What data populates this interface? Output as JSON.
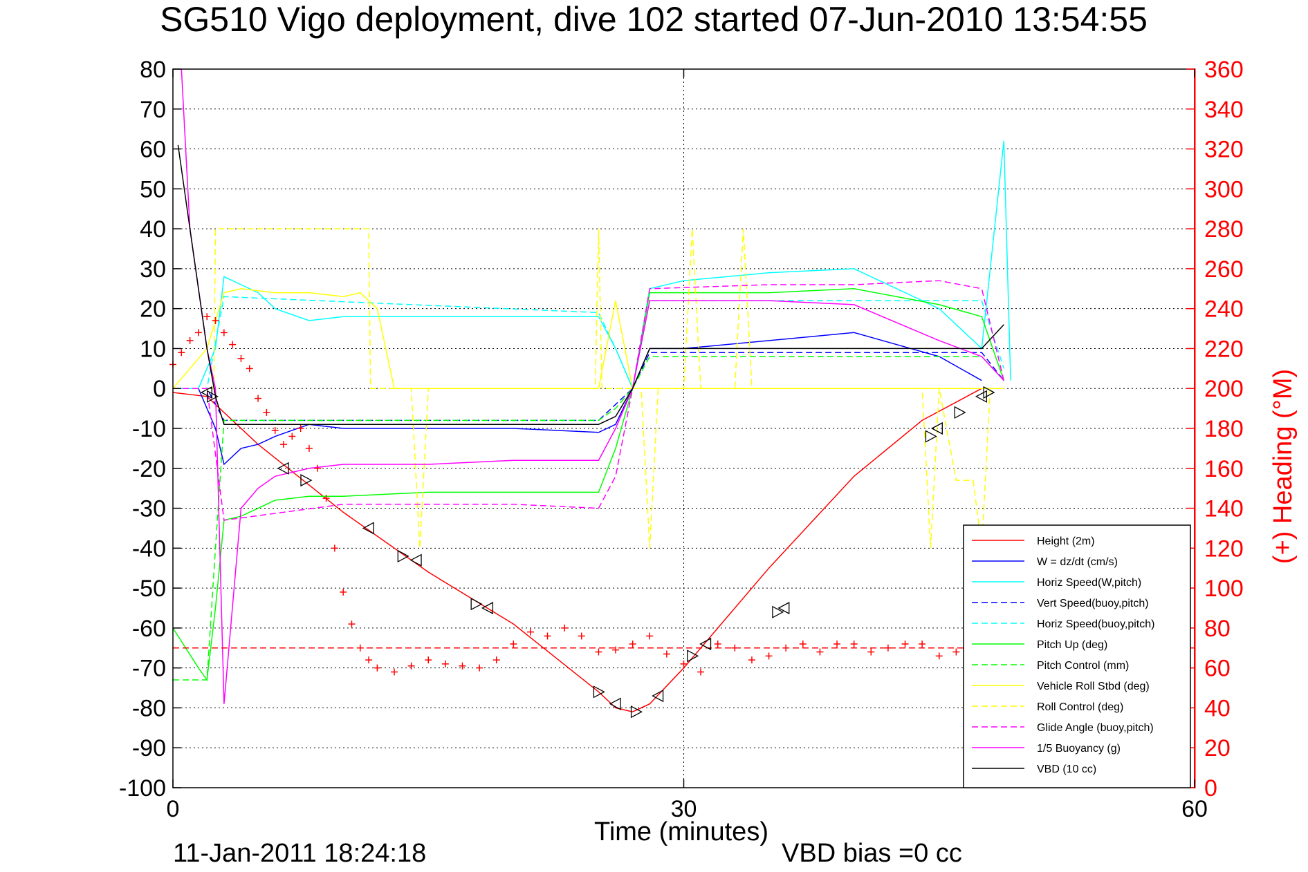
{
  "chart_data": {
    "type": "line",
    "title": "SG510 Vigo deployment, dive 102 started 07-Jun-2010 13:54:55",
    "xlabel": "Time (minutes)",
    "ylabel": "",
    "y2label": "(+) Heading (°M)",
    "xlim": [
      0,
      60
    ],
    "ylim": [
      -100,
      80
    ],
    "y2lim": [
      0,
      360
    ],
    "x_ticks": [
      "0",
      "30",
      "60"
    ],
    "y_ticks": [
      "80",
      "70",
      "60",
      "50",
      "40",
      "30",
      "20",
      "10",
      "0",
      "-10",
      "-20",
      "-30",
      "-40",
      "-50",
      "-60",
      "-70",
      "-80",
      "-90",
      "-100"
    ],
    "y2_ticks": [
      "360",
      "340",
      "320",
      "300",
      "280",
      "260",
      "240",
      "220",
      "200",
      "180",
      "160",
      "140",
      "120",
      "100",
      "80",
      "60",
      "40",
      "20",
      "0"
    ],
    "grid": true,
    "legend_position": "bottom-right",
    "footer_left": "11-Jan-2011 18:24:18",
    "footer_right": "VBD bias =0 cc",
    "series": [
      {
        "name": "Height (2m)",
        "color": "#ff0000",
        "style": "solid",
        "x": [
          0,
          2,
          5,
          10,
          15,
          20,
          25,
          26,
          27,
          28,
          30,
          35,
          40,
          44,
          47.5
        ],
        "y": [
          -1,
          -2,
          -14,
          -31,
          -46,
          -59,
          -76,
          -80,
          -81,
          -79,
          -70,
          -45,
          -22,
          -8,
          0
        ]
      },
      {
        "name": "W = dz/dt (cm/s)",
        "color": "#0000ff",
        "style": "solid",
        "x": [
          0,
          1.5,
          2.5,
          3,
          4,
          5,
          6,
          8,
          10,
          15,
          20,
          25,
          26,
          27,
          28,
          30,
          35,
          40,
          45,
          47.5
        ],
        "y": [
          0,
          0,
          -10,
          -19,
          -15,
          -14,
          -12,
          -9,
          -10,
          -10,
          -10,
          -11,
          -9,
          0,
          10,
          10,
          12,
          14,
          8,
          2
        ]
      },
      {
        "name": "Horiz Speed(W,pitch)",
        "color": "#00ffff",
        "style": "solid",
        "x": [
          0,
          1.5,
          2.5,
          3,
          4,
          5,
          6,
          8,
          10,
          15,
          20,
          25,
          26,
          27,
          28,
          30,
          35,
          40,
          45,
          47.5,
          48.8,
          49.2
        ],
        "y": [
          0,
          0,
          10,
          28,
          26,
          24,
          20,
          17,
          18,
          18,
          18,
          18,
          10,
          0,
          25,
          27,
          29,
          30,
          20,
          10,
          62,
          2
        ]
      },
      {
        "name": "Vert Speed(buoy,pitch)",
        "color": "#0000ff",
        "style": "dashed",
        "x": [
          0,
          2,
          3,
          25,
          26,
          27,
          28,
          47.5,
          48.8
        ],
        "y": [
          0,
          0,
          -8,
          -8,
          -4,
          0,
          9,
          9,
          2
        ]
      },
      {
        "name": "Horiz Speed(buoy,pitch)",
        "color": "#00ffff",
        "style": "dashed",
        "x": [
          0,
          2,
          3,
          25,
          26,
          27,
          28,
          47.5,
          48.8
        ],
        "y": [
          0,
          0,
          23,
          19,
          10,
          0,
          22,
          22,
          5
        ]
      },
      {
        "name": "Pitch Up (deg)",
        "color": "#00ff00",
        "style": "solid",
        "x": [
          0,
          1.5,
          2,
          2.5,
          3,
          4,
          5,
          6,
          8,
          10,
          15,
          20,
          25,
          26,
          27,
          28,
          30,
          35,
          40,
          45,
          47.5,
          48.8
        ],
        "y": [
          -60,
          -70,
          -73,
          -55,
          -33,
          -32,
          -30,
          -28,
          -27,
          -27,
          -26,
          -26,
          -26,
          -15,
          0,
          24,
          24,
          24,
          25,
          21,
          18,
          2
        ]
      },
      {
        "name": "Pitch Control (mm)",
        "color": "#00ff00",
        "style": "dashed",
        "x": [
          0,
          2,
          2.5,
          3,
          25,
          26,
          27,
          28,
          47.5,
          48.8
        ],
        "y": [
          -73,
          -73,
          -40,
          -8,
          -8,
          -5,
          0,
          8,
          8,
          2
        ]
      },
      {
        "name": "Vehicle Roll Stbd (deg)",
        "color": "#ffff00",
        "style": "solid",
        "x": [
          0,
          2,
          3,
          4,
          6,
          8,
          10,
          11,
          12,
          13,
          14,
          15,
          20,
          25,
          26,
          27,
          28,
          29,
          30,
          31,
          32,
          35,
          40,
          45,
          47.5,
          48.8
        ],
        "y": [
          0,
          10,
          24,
          25,
          24,
          24,
          23,
          24,
          20,
          0,
          0,
          0,
          0,
          0,
          22,
          0,
          0,
          0,
          0,
          0,
          0,
          0,
          0,
          0,
          0,
          0
        ]
      },
      {
        "name": "Roll Control (deg)",
        "color": "#ffff00",
        "style": "dashed",
        "x": [
          0,
          2,
          2.4,
          2.5,
          6,
          7,
          7.1,
          11.5,
          11.6,
          14,
          14.5,
          15,
          20,
          24.8,
          25,
          25.2,
          27,
          27.5,
          28,
          28.5,
          30,
          30.5,
          31,
          31.5,
          33,
          33.5,
          34,
          40,
          44,
          44.5,
          45,
          46,
          47,
          47.5,
          48,
          48.8
        ],
        "y": [
          0,
          0,
          0,
          40,
          40,
          40,
          40,
          40,
          0,
          0,
          -40,
          0,
          0,
          0,
          40,
          0,
          0,
          0,
          -40,
          0,
          0,
          40,
          0,
          0,
          0,
          40,
          0,
          0,
          0,
          -40,
          0,
          -23,
          -23,
          -40,
          0,
          0
        ]
      },
      {
        "name": "Glide Angle (buoy,pitch)",
        "color": "#ff00ff",
        "style": "dashed",
        "x": [
          0,
          2,
          3,
          10,
          20,
          25,
          26,
          27,
          28,
          35,
          40,
          45,
          47.5,
          48.8
        ],
        "y": [
          0,
          0,
          -33,
          -29,
          -29,
          -30,
          -22,
          0,
          25,
          26,
          26,
          27,
          25,
          2
        ]
      },
      {
        "name": "1/5 Buoyancy (g)",
        "color": "#ff00ff",
        "style": "solid",
        "x": [
          0.5,
          1,
          2,
          2.5,
          3,
          4,
          5,
          6,
          8,
          10,
          15,
          20,
          25,
          26,
          27,
          28,
          30,
          35,
          40,
          45,
          47.5,
          48.8
        ],
        "y": [
          80,
          40,
          10,
          0,
          -79,
          -30,
          -25,
          -22,
          -20,
          -19,
          -19,
          -18,
          -18,
          -10,
          0,
          22,
          22,
          22,
          21,
          12,
          8,
          2
        ]
      },
      {
        "name": "VBD (10 cc)",
        "color": "#000000",
        "style": "solid",
        "x": [
          0.3,
          1,
          2,
          2.5,
          3,
          25,
          26,
          27,
          28,
          47.5,
          48.8
        ],
        "y": [
          61,
          40,
          10,
          -2,
          -9,
          -9,
          -7,
          0,
          10,
          10,
          16
        ]
      }
    ],
    "heading_markers": {
      "name": "(+) Heading",
      "color": "#ff0000",
      "axis": "right",
      "x": [
        0,
        0.5,
        1,
        1.5,
        2,
        2.5,
        3,
        3.5,
        4,
        4.5,
        5,
        5.5,
        6,
        6.5,
        7,
        7.5,
        8,
        8.5,
        9,
        9.5,
        10,
        10.5,
        11,
        11.5,
        12,
        13,
        14,
        15,
        16,
        17,
        18,
        19,
        20,
        21,
        22,
        23,
        24,
        25,
        26,
        27,
        28,
        29,
        30,
        31,
        32,
        33,
        34,
        35,
        36,
        37,
        38,
        39,
        40,
        41,
        42,
        43,
        44,
        45,
        46,
        47,
        47.5
      ],
      "y": [
        212,
        218,
        224,
        228,
        236,
        234,
        228,
        222,
        215,
        210,
        195,
        188,
        179,
        172,
        176,
        180,
        170,
        160,
        145,
        120,
        98,
        82,
        70,
        64,
        60,
        58,
        61,
        64,
        62,
        61,
        60,
        64,
        72,
        78,
        76,
        80,
        76,
        68,
        69,
        72,
        76,
        67,
        62,
        58,
        72,
        70,
        64,
        66,
        70,
        72,
        68,
        72,
        72,
        68,
        70,
        72,
        72,
        66,
        68,
        76,
        110
      ]
    },
    "reference_lines": [
      {
        "color": "#ff0000",
        "style": "dashed",
        "axis": "right",
        "y": 70
      }
    ],
    "apogee_markers": {
      "color": "#000000",
      "x": [
        2,
        2.3,
        6.5,
        7.8,
        11.5,
        13.5,
        14.3,
        17.8,
        18.5,
        25,
        26,
        27.2,
        28.5,
        30.5,
        31.3,
        35.5,
        35.9,
        44.5,
        44.9,
        46.2,
        47.5,
        47.9
      ],
      "y": [
        -1,
        -2,
        -20,
        -23,
        -35,
        -42,
        -43,
        -54,
        -55,
        -76,
        -79,
        -81,
        -77,
        -67,
        -64,
        -56,
        -55,
        -12,
        -10,
        -6,
        -2,
        -1
      ]
    }
  }
}
